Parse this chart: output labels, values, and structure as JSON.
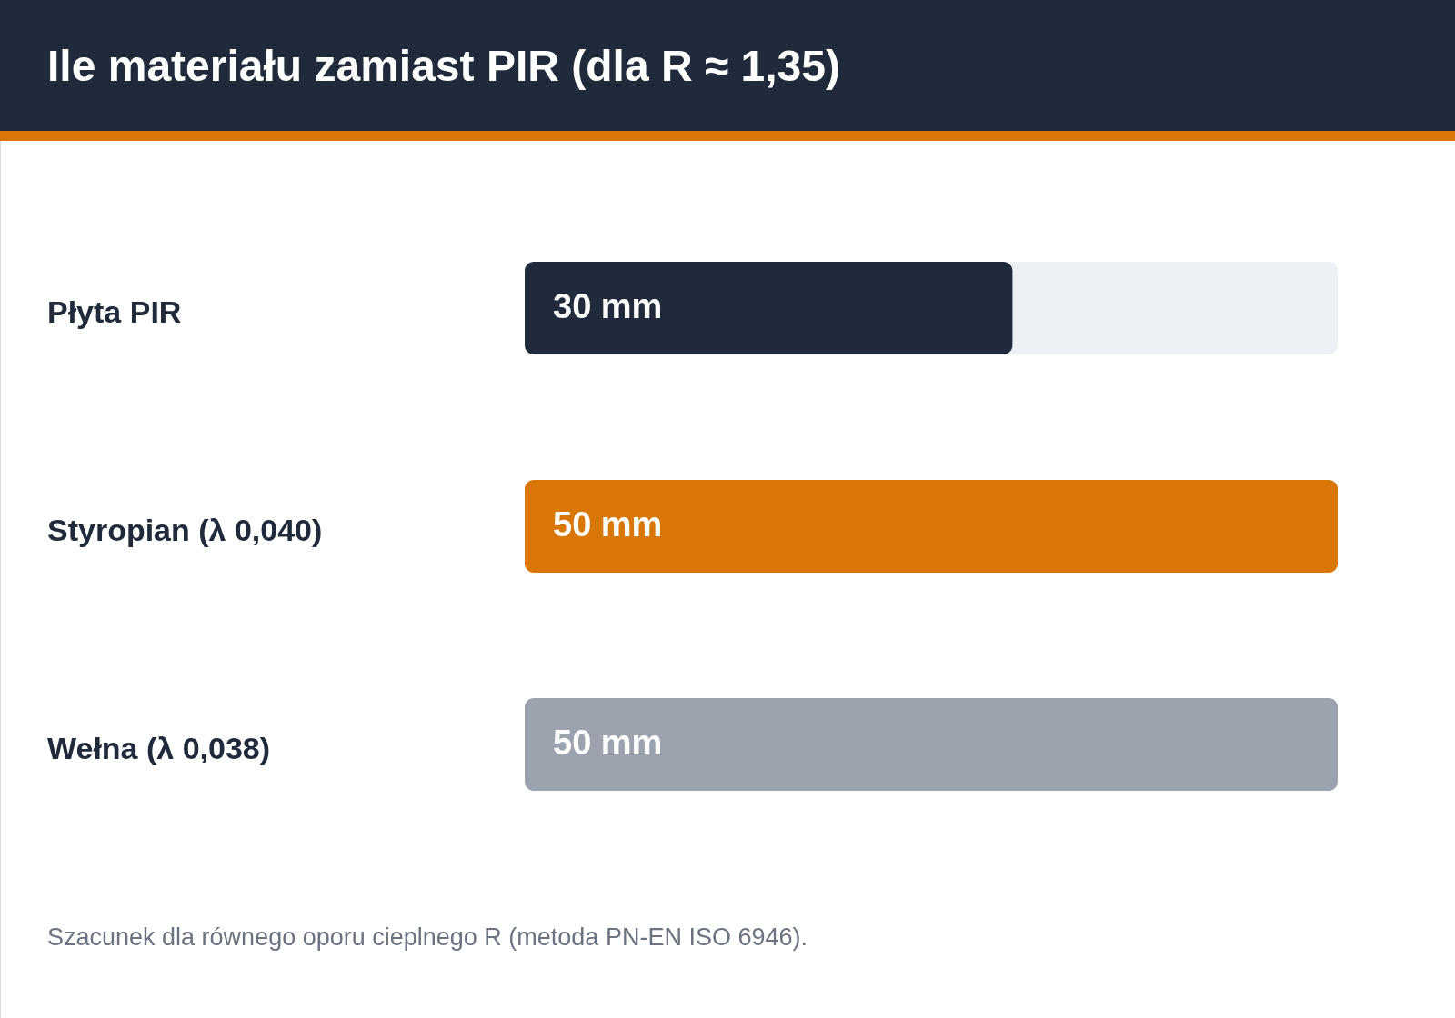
{
  "chart_data": {
    "type": "bar",
    "orientation": "horizontal",
    "title": "Ile materiału zamiast PIR (dla R ≈ 1,35)",
    "categories": [
      "Płyta PIR",
      "Styropian (λ 0,040)",
      "Wełna (λ 0,038)"
    ],
    "values": [
      30,
      50,
      50
    ],
    "colors": [
      "#212a3a",
      "#d97706",
      "#9ca3af"
    ],
    "value_labels": [
      "30 mm",
      "50 mm",
      "50 mm"
    ],
    "xlim": [
      0,
      50
    ],
    "tick_labels": false,
    "annotations": [
      "Szacunek dla równego oporu cieplnego R (metoda PN-EN ISO 6946)."
    ]
  }
}
